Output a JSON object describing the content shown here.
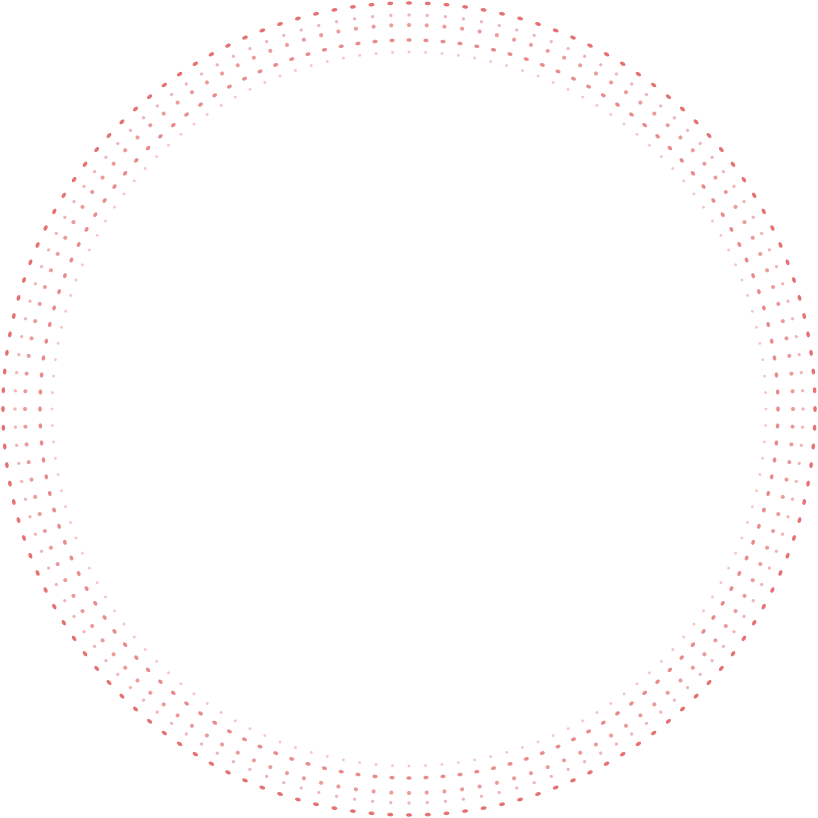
{
  "decoration": {
    "type": "dotted-concentric-ring",
    "dot_color": "#e0585a",
    "background": "#ffffff",
    "ring_count": 5,
    "dots_per_ring": 136
  }
}
